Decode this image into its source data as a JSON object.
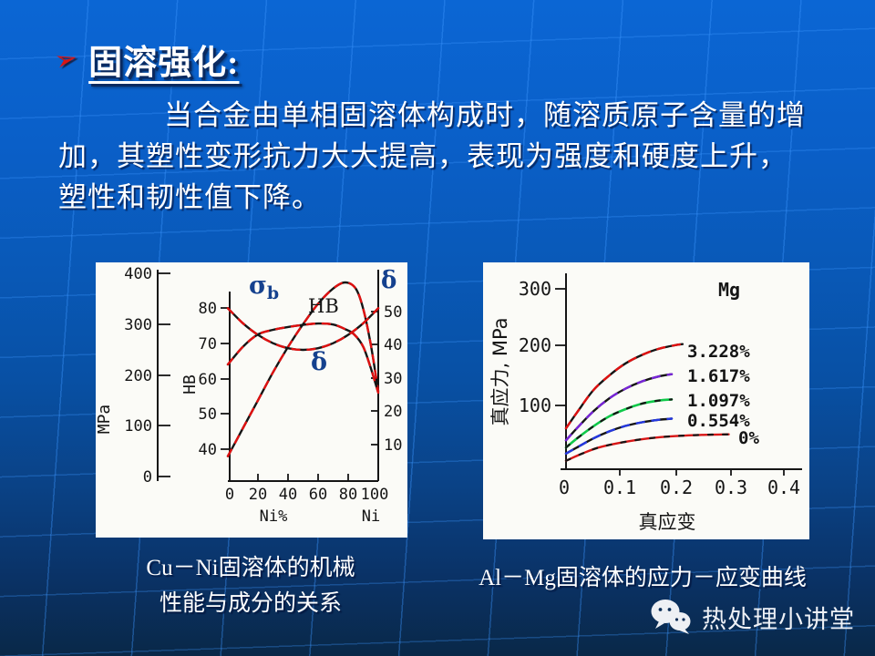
{
  "header": {
    "bullet_glyph": "➢",
    "title": "固溶强化:"
  },
  "body": {
    "lines": [
      "当合金由单相固溶体构成时，随溶质原子含量的增",
      "加，其塑性变形抗力大大提高，表现为强度和硬度上升，",
      "塑性和韧性值下降。"
    ]
  },
  "captions": {
    "left_line1": "Cu－Ni固溶体的机械",
    "left_line2": "性能与成分的关系",
    "right": "Al－Mg固溶体的应力－应变曲线"
  },
  "watermark": {
    "label": "热处理小讲堂"
  },
  "colors": {
    "bg_top": "#0b66d4",
    "bg_bottom": "#092848",
    "grid_line": "#3c96ff",
    "accent_red": "#d81616",
    "panel": "#fbfbf7",
    "curve_red": "#e01010",
    "label_blue": "#15418e",
    "curve_green": "#10c94a",
    "curve_blue": "#2438e0",
    "curve_purple": "#7724d8"
  },
  "chart_data": [
    {
      "type": "line",
      "title": "Cu－Ni固溶体的机械性能与成分的关系",
      "x_axis": {
        "label_mid": "Ni%",
        "label_right": "Ni",
        "ticks": [
          "0",
          "20",
          "40",
          "60",
          "80",
          "100"
        ],
        "range": [
          0,
          100
        ]
      },
      "axes": {
        "mpa": {
          "label": "MPa",
          "ticks": [
            "0",
            "100",
            "200",
            "300",
            "400"
          ],
          "range": [
            0,
            400
          ]
        },
        "hb": {
          "label": "HB",
          "ticks": [
            "40",
            "50",
            "60",
            "70",
            "80"
          ],
          "range": [
            40,
            80
          ]
        },
        "delta": {
          "label": "δ",
          "ticks": [
            "10",
            "20",
            "30",
            "40",
            "50"
          ],
          "range": [
            10,
            50
          ]
        }
      },
      "curve_labels": {
        "sigma": "σ",
        "sigma_sub": "b",
        "hb": "HB",
        "delta": "δ"
      },
      "series": [
        {
          "name": "σb",
          "axis": "mpa",
          "x": [
            0,
            10,
            20,
            30,
            40,
            50,
            60,
            70,
            78,
            85,
            90,
            95,
            100
          ],
          "values": [
            40,
            95,
            150,
            205,
            255,
            300,
            340,
            370,
            382,
            370,
            330,
            260,
            168
          ]
        },
        {
          "name": "HB",
          "axis": "hb",
          "x": [
            0,
            10,
            20,
            30,
            40,
            50,
            60,
            70,
            78,
            84,
            90,
            95,
            100
          ],
          "values": [
            64,
            69,
            72.5,
            73.8,
            74.6,
            75.2,
            75.6,
            75.3,
            74,
            72.5,
            69,
            63,
            56
          ]
        },
        {
          "name": "δ",
          "axis": "delta",
          "x": [
            0,
            10,
            20,
            30,
            40,
            50,
            60,
            70,
            80,
            90,
            100
          ],
          "values": [
            51,
            46.5,
            43,
            40.5,
            39,
            38.5,
            39,
            40.5,
            43,
            46.5,
            51
          ]
        }
      ]
    },
    {
      "type": "line",
      "title": "Al－Mg固溶体的应力－应变曲线",
      "annotation": "Mg",
      "xlabel": "真应变",
      "ylabel": "真应力, MPa",
      "x_axis": {
        "ticks": [
          "0",
          "0.1",
          "0.2",
          "0.3",
          "0.4"
        ],
        "range": [
          0,
          0.45
        ]
      },
      "y_axis": {
        "ticks": [
          "100",
          "200",
          "300"
        ],
        "range": [
          0,
          320
        ]
      },
      "legend_position": "right-of-curves",
      "series": [
        {
          "name": "3.228%",
          "x": [
            0,
            0.02,
            0.05,
            0.08,
            0.11,
            0.14,
            0.17,
            0.2,
            0.215
          ],
          "values": [
            62,
            88,
            125,
            150,
            170,
            184,
            194,
            200,
            202
          ]
        },
        {
          "name": "1.617%",
          "x": [
            0,
            0.02,
            0.05,
            0.08,
            0.11,
            0.14,
            0.17,
            0.195
          ],
          "values": [
            42,
            62,
            90,
            112,
            128,
            140,
            148,
            152
          ]
        },
        {
          "name": "1.097%",
          "x": [
            0,
            0.02,
            0.05,
            0.08,
            0.11,
            0.14,
            0.17,
            0.195
          ],
          "values": [
            30,
            45,
            65,
            82,
            94,
            103,
            108,
            110
          ]
        },
        {
          "name": "0.554%",
          "x": [
            0,
            0.02,
            0.05,
            0.08,
            0.11,
            0.14,
            0.17,
            0.195
          ],
          "values": [
            20,
            30,
            45,
            57,
            66,
            72,
            76,
            78
          ]
        },
        {
          "name": "0%",
          "x": [
            0,
            0.03,
            0.06,
            0.1,
            0.15,
            0.2,
            0.25,
            0.3
          ],
          "values": [
            8,
            20,
            30,
            38,
            45,
            49,
            51,
            52
          ]
        }
      ]
    }
  ]
}
